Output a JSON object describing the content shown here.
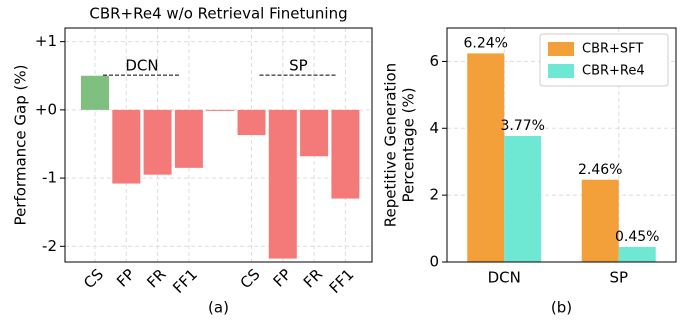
{
  "chart_data": [
    {
      "type": "bar",
      "title": "CBR+Re4 w/o Retrieval Finetuning",
      "ylabel": "Performance Gap (%)",
      "xlabel": "(a)",
      "categories": [
        "CS",
        "FP",
        "FR",
        "FF1",
        null,
        "CS",
        "FP",
        "FR",
        "FF1"
      ],
      "values": [
        0.5,
        -1.08,
        -0.95,
        -0.85,
        0,
        -0.37,
        -2.18,
        -0.68,
        -1.3
      ],
      "colors": [
        "#7fbf7f",
        "#f47a7a",
        "#f47a7a",
        "#f47a7a",
        "#f47a7a",
        "#f47a7a",
        "#f47a7a",
        "#f47a7a",
        "#f47a7a"
      ],
      "annotations": [
        "DCN",
        "SP"
      ],
      "ylim": [
        -2.23,
        1.2
      ],
      "yticks": [
        {
          "value": 1,
          "label": "+1"
        },
        {
          "value": 0,
          "label": "+0"
        },
        -1,
        -2
      ],
      "grid": true
    },
    {
      "type": "grouped_bar",
      "ylabel": [
        "Repetitive Generation",
        "Percentage (%)"
      ],
      "xlabel": "(b)",
      "categories": [
        "DCN",
        "SP"
      ],
      "series": [
        {
          "name": "CBR+SFT",
          "color": "#f4a03a",
          "values": [
            6.24,
            2.46
          ],
          "value_labels": [
            "6.24%",
            "2.46%"
          ]
        },
        {
          "name": "CBR+Re4",
          "color": "#6ee8d2",
          "values": [
            3.77,
            0.45
          ],
          "value_labels": [
            "3.77%",
            "0.45%"
          ]
        }
      ],
      "ylim": [
        0,
        7
      ],
      "yticks": [
        0,
        2,
        4,
        6
      ],
      "grid": true,
      "legend": "upper right"
    }
  ]
}
